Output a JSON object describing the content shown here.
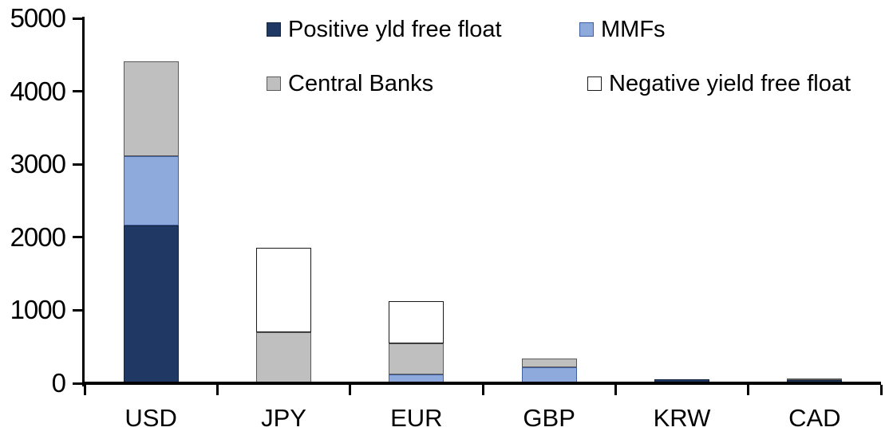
{
  "chart_data": {
    "type": "bar",
    "stacked": true,
    "title": "",
    "xlabel": "",
    "ylabel": "",
    "categories": [
      "USD",
      "JPY",
      "EUR",
      "GBP",
      "KRW",
      "CAD"
    ],
    "series": [
      {
        "name": "Positive yld free float",
        "color": "#1F3864",
        "border_color": "#17263F",
        "values": [
          2150,
          0,
          0,
          0,
          40,
          30
        ]
      },
      {
        "name": "MMFs",
        "color": "#8EA9DB",
        "border_color": "#3F5F9E",
        "values": [
          950,
          0,
          110,
          210,
          0,
          0
        ]
      },
      {
        "name": "Central Banks",
        "color": "#BFBFBF",
        "border_color": "#595959",
        "values": [
          1300,
          690,
          430,
          120,
          0,
          30
        ]
      },
      {
        "name": "Negative yield free float",
        "color": "#FFFFFF",
        "border_color": "#1A1A1A",
        "values": [
          0,
          1160,
          570,
          0,
          0,
          0
        ]
      }
    ],
    "totals": [
      4400,
      1850,
      1110,
      330,
      40,
      60
    ],
    "ylim": [
      0,
      5000
    ],
    "ytick_step": 1000,
    "ytick_labels": [
      "0",
      "1000",
      "2000",
      "3000",
      "4000",
      "5000"
    ],
    "grid": false,
    "legend_position": "top",
    "legend_rows": [
      [
        "Positive yld free float",
        "MMFs"
      ],
      [
        "Central Banks",
        "Negative yield free float"
      ]
    ],
    "axis_color": "#000000",
    "background_color": "#FFFFFF"
  }
}
